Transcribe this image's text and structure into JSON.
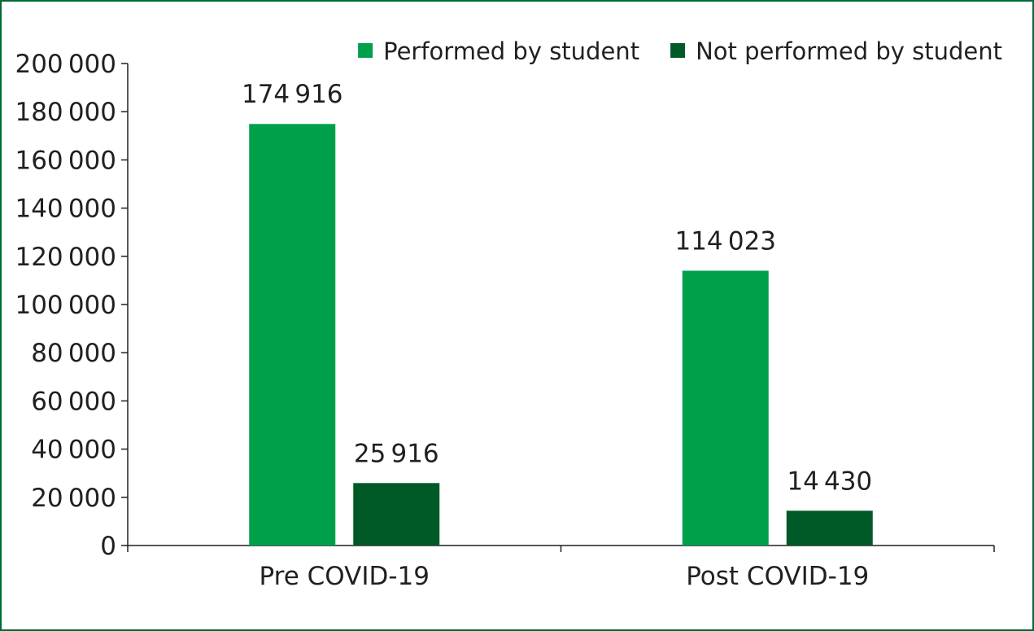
{
  "chart_data": {
    "type": "bar",
    "title": "",
    "xlabel": "",
    "ylabel": "",
    "categories": [
      "Pre COVID-19",
      "Post COVID-19"
    ],
    "series": [
      {
        "name": "Performed by student",
        "color": "#00a04b",
        "values": [
          174916,
          114023
        ],
        "labels": [
          "174 916",
          "114 023"
        ]
      },
      {
        "name": "Not performed by student",
        "color": "#005a27",
        "values": [
          25916,
          14430
        ],
        "labels": [
          "25 916",
          "14 430"
        ]
      }
    ],
    "ylim": [
      0,
      200000
    ],
    "yticks": [
      0,
      20000,
      40000,
      60000,
      80000,
      100000,
      120000,
      140000,
      160000,
      180000,
      200000
    ],
    "ytick_labels": [
      "0",
      "20 000",
      "40 000",
      "60 000",
      "80 000",
      "100 000",
      "120 000",
      "140 000",
      "160 000",
      "180 000",
      "200 000"
    ],
    "grid": false,
    "legend_position": "top-right",
    "frame_color": "#006b35"
  }
}
